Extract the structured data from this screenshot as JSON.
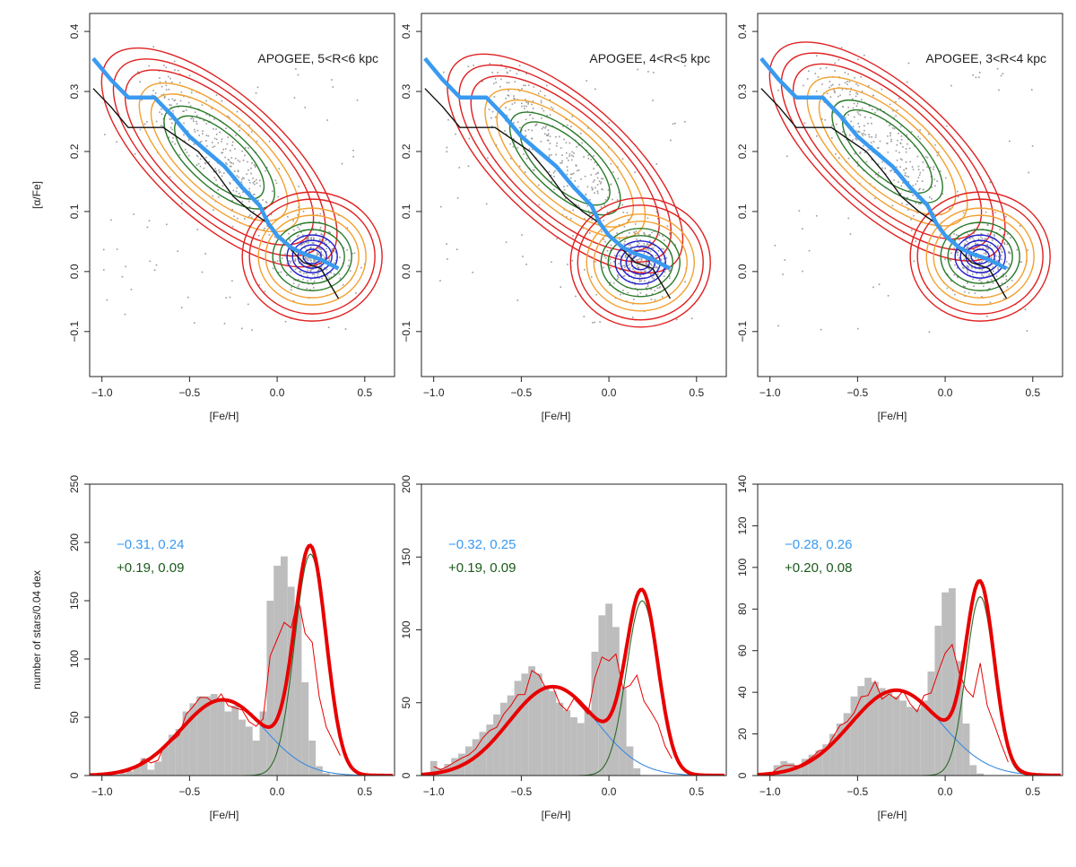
{
  "chart_data": [
    {
      "type": "scatter",
      "panel": "top-1",
      "annotation": "APOGEE, 5<R<6 kpc",
      "xlabel": "[Fe/H]",
      "ylabel": "[α/Fe]",
      "xlim": [
        -1.07,
        0.67
      ],
      "ylim": [
        -0.175,
        0.43
      ],
      "xticks": [
        -1.0,
        -0.5,
        0.0,
        0.5
      ],
      "xtick_labels": [
        "-1.0",
        "-0.5",
        "0.0",
        "0.5"
      ],
      "yticks": [
        -0.1,
        0.0,
        0.1,
        0.2,
        0.3,
        0.4
      ],
      "ytick_labels": [
        "-0.1",
        "0.0",
        "0.1",
        "0.2",
        "0.3",
        "0.4"
      ],
      "blue_track": [
        [
          -1.05,
          0.355
        ],
        [
          -0.95,
          0.32
        ],
        [
          -0.85,
          0.29
        ],
        [
          -0.78,
          0.29
        ],
        [
          -0.7,
          0.29
        ],
        [
          -0.6,
          0.26
        ],
        [
          -0.5,
          0.225
        ],
        [
          -0.4,
          0.2
        ],
        [
          -0.3,
          0.175
        ],
        [
          -0.2,
          0.14
        ],
        [
          -0.1,
          0.11
        ],
        [
          -0.05,
          0.08
        ],
        [
          0.0,
          0.06
        ],
        [
          0.08,
          0.04
        ],
        [
          0.15,
          0.03
        ],
        [
          0.25,
          0.02
        ],
        [
          0.35,
          0.005
        ]
      ],
      "black_track": [
        [
          -1.05,
          0.305
        ],
        [
          -0.95,
          0.275
        ],
        [
          -0.85,
          0.24
        ],
        [
          -0.75,
          0.24
        ],
        [
          -0.65,
          0.24
        ],
        [
          -0.55,
          0.22
        ],
        [
          -0.45,
          0.2
        ],
        [
          -0.35,
          0.165
        ],
        [
          -0.25,
          0.125
        ],
        [
          -0.15,
          0.1
        ],
        [
          -0.05,
          0.08
        ],
        [
          0.05,
          0.045
        ],
        [
          0.15,
          0.015
        ],
        [
          0.25,
          0.005
        ],
        [
          0.35,
          -0.045
        ]
      ],
      "thin_disc_peak": [
        0.2,
        0.025
      ],
      "thick_disc_peak": [
        -0.38,
        0.21
      ]
    },
    {
      "type": "scatter",
      "panel": "top-2",
      "annotation": "APOGEE, 4<R<5 kpc",
      "xlabel": "[Fe/H]",
      "ylabel": "",
      "xlim": [
        -1.07,
        0.67
      ],
      "ylim": [
        -0.175,
        0.43
      ],
      "xticks": [
        -1.0,
        -0.5,
        0.0,
        0.5
      ],
      "xtick_labels": [
        "-1.0",
        "-0.5",
        "0.0",
        "0.5"
      ],
      "yticks": [
        -0.1,
        0.0,
        0.1,
        0.2,
        0.3,
        0.4
      ],
      "ytick_labels": [
        "-0.1",
        "0.0",
        "0.1",
        "0.2",
        "0.3",
        "0.4"
      ],
      "blue_track": [
        [
          -1.05,
          0.355
        ],
        [
          -0.95,
          0.32
        ],
        [
          -0.85,
          0.29
        ],
        [
          -0.78,
          0.29
        ],
        [
          -0.7,
          0.29
        ],
        [
          -0.6,
          0.26
        ],
        [
          -0.5,
          0.225
        ],
        [
          -0.4,
          0.2
        ],
        [
          -0.3,
          0.175
        ],
        [
          -0.2,
          0.14
        ],
        [
          -0.1,
          0.11
        ],
        [
          -0.05,
          0.08
        ],
        [
          0.0,
          0.06
        ],
        [
          0.08,
          0.04
        ],
        [
          0.15,
          0.03
        ],
        [
          0.25,
          0.02
        ],
        [
          0.35,
          0.005
        ]
      ],
      "black_track": [
        [
          -1.05,
          0.305
        ],
        [
          -0.95,
          0.275
        ],
        [
          -0.85,
          0.24
        ],
        [
          -0.75,
          0.24
        ],
        [
          -0.65,
          0.24
        ],
        [
          -0.55,
          0.22
        ],
        [
          -0.45,
          0.2
        ],
        [
          -0.35,
          0.165
        ],
        [
          -0.25,
          0.125
        ],
        [
          -0.15,
          0.1
        ],
        [
          -0.05,
          0.08
        ],
        [
          0.05,
          0.045
        ],
        [
          0.15,
          0.015
        ],
        [
          0.25,
          0.005
        ],
        [
          0.35,
          -0.045
        ]
      ],
      "thin_disc_peak": [
        0.18,
        0.015
      ],
      "thick_disc_peak": [
        -0.3,
        0.2
      ]
    },
    {
      "type": "scatter",
      "panel": "top-3",
      "annotation": "APOGEE, 3<R<4 kpc",
      "xlabel": "[Fe/H]",
      "ylabel": "",
      "xlim": [
        -1.07,
        0.67
      ],
      "ylim": [
        -0.175,
        0.43
      ],
      "xticks": [
        -1.0,
        -0.5,
        0.0,
        0.5
      ],
      "xtick_labels": [
        "-1.0",
        "-0.5",
        "0.0",
        "0.5"
      ],
      "yticks": [
        -0.1,
        0.0,
        0.1,
        0.2,
        0.3,
        0.4
      ],
      "ytick_labels": [
        "-0.1",
        "0.0",
        "0.1",
        "0.2",
        "0.3",
        "0.4"
      ],
      "blue_track": [
        [
          -1.05,
          0.355
        ],
        [
          -0.95,
          0.32
        ],
        [
          -0.85,
          0.29
        ],
        [
          -0.78,
          0.29
        ],
        [
          -0.7,
          0.29
        ],
        [
          -0.6,
          0.26
        ],
        [
          -0.5,
          0.225
        ],
        [
          -0.4,
          0.2
        ],
        [
          -0.3,
          0.175
        ],
        [
          -0.2,
          0.14
        ],
        [
          -0.1,
          0.11
        ],
        [
          -0.05,
          0.08
        ],
        [
          0.0,
          0.06
        ],
        [
          0.08,
          0.04
        ],
        [
          0.15,
          0.03
        ],
        [
          0.25,
          0.02
        ],
        [
          0.35,
          0.005
        ]
      ],
      "black_track": [
        [
          -1.05,
          0.305
        ],
        [
          -0.95,
          0.275
        ],
        [
          -0.85,
          0.24
        ],
        [
          -0.75,
          0.24
        ],
        [
          -0.65,
          0.24
        ],
        [
          -0.55,
          0.22
        ],
        [
          -0.45,
          0.2
        ],
        [
          -0.35,
          0.165
        ],
        [
          -0.25,
          0.125
        ],
        [
          -0.15,
          0.1
        ],
        [
          -0.05,
          0.08
        ],
        [
          0.05,
          0.045
        ],
        [
          0.15,
          0.015
        ],
        [
          0.25,
          0.005
        ],
        [
          0.35,
          -0.045
        ]
      ],
      "thin_disc_peak": [
        0.2,
        0.025
      ],
      "thick_disc_peak": [
        -0.38,
        0.22
      ]
    },
    {
      "type": "bar",
      "panel": "bottom-1",
      "xlabel": "[Fe/H]",
      "ylabel": "number of stars/0.04 dex",
      "xlim": [
        -1.07,
        0.67
      ],
      "ylim": [
        0,
        250
      ],
      "xticks": [
        -1.0,
        -0.5,
        0.0,
        0.5
      ],
      "xtick_labels": [
        "-1.0",
        "-0.5",
        "0.0",
        "0.5"
      ],
      "yticks": [
        0,
        50,
        100,
        150,
        200,
        250
      ],
      "ytick_labels": [
        "0",
        "50",
        "100",
        "150",
        "200",
        "250"
      ],
      "annotation_blue": "−0.31, 0.24",
      "annotation_green": "+0.19, 0.09",
      "bin_start": -1.02,
      "bin_width": 0.04,
      "values": [
        0,
        0,
        1,
        2,
        4,
        8,
        15,
        5,
        12,
        25,
        35,
        40,
        55,
        62,
        68,
        68,
        70,
        65,
        55,
        60,
        48,
        42,
        30,
        55,
        150,
        180,
        188,
        162,
        145,
        80,
        30,
        8,
        2,
        0,
        0
      ],
      "comp1": {
        "mu": -0.31,
        "sigma": 0.24,
        "peak": 65
      },
      "comp2": {
        "mu": 0.19,
        "sigma": 0.09,
        "peak": 190
      }
    },
    {
      "type": "bar",
      "panel": "bottom-2",
      "xlabel": "[Fe/H]",
      "ylabel": "",
      "xlim": [
        -1.07,
        0.67
      ],
      "ylim": [
        0,
        200
      ],
      "xticks": [
        -1.0,
        -0.5,
        0.0,
        0.5
      ],
      "xtick_labels": [
        "-1.0",
        "-0.5",
        "0.0",
        "0.5"
      ],
      "yticks": [
        0,
        50,
        100,
        150,
        200
      ],
      "ytick_labels": [
        "0",
        "50",
        "100",
        "150",
        "200"
      ],
      "annotation_blue": "−0.32, 0.25",
      "annotation_green": "+0.19, 0.09",
      "bin_start": -1.02,
      "bin_width": 0.04,
      "values": [
        10,
        5,
        8,
        12,
        15,
        20,
        25,
        30,
        35,
        42,
        50,
        55,
        65,
        70,
        75,
        70,
        62,
        58,
        50,
        45,
        40,
        36,
        45,
        85,
        110,
        118,
        102,
        60,
        20,
        5,
        0,
        0,
        0,
        0,
        0
      ],
      "comp1": {
        "mu": -0.32,
        "sigma": 0.25,
        "peak": 61
      },
      "comp2": {
        "mu": 0.19,
        "sigma": 0.09,
        "peak": 120
      }
    },
    {
      "type": "bar",
      "panel": "bottom-3",
      "xlabel": "[Fe/H]",
      "ylabel": "",
      "xlim": [
        -1.07,
        0.67
      ],
      "ylim": [
        0,
        140
      ],
      "xticks": [
        -1.0,
        -0.5,
        0.0,
        0.5
      ],
      "xtick_labels": [
        "-1.0",
        "-0.5",
        "0.0",
        "0.5"
      ],
      "yticks": [
        0,
        20,
        40,
        60,
        80,
        100,
        120,
        140
      ],
      "ytick_labels": [
        "0",
        "20",
        "40",
        "60",
        "80",
        "100",
        "120",
        "140"
      ],
      "annotation_blue": "−0.28, 0.26",
      "annotation_green": "+0.20, 0.08",
      "bin_start": -1.02,
      "bin_width": 0.04,
      "values": [
        0,
        5,
        7,
        6,
        5,
        8,
        10,
        12,
        15,
        20,
        25,
        30,
        38,
        43,
        47,
        45,
        42,
        40,
        38,
        36,
        33,
        32,
        36,
        50,
        72,
        88,
        90,
        55,
        25,
        5,
        1,
        0,
        0,
        0,
        0
      ],
      "comp1": {
        "mu": -0.28,
        "sigma": 0.26,
        "peak": 41
      },
      "comp2": {
        "mu": 0.2,
        "sigma": 0.08,
        "peak": 86
      }
    }
  ],
  "colors": {
    "scatter_points": "#9a9a9a",
    "blue_track": "#3a9af0",
    "black_track": "#111111",
    "contour_red": "#e02020",
    "contour_orange": "#f2a030",
    "contour_green": "#2a7a2a",
    "contour_blue": "#2020d0",
    "histogram_fill": "#bdbdbd",
    "fit_total": "#e80000",
    "fit_comp1": "#3a8ae0",
    "fit_comp2": "#2a6a2a",
    "annotation_blue": "#3a9af0",
    "annotation_green": "#1a5a1a"
  }
}
